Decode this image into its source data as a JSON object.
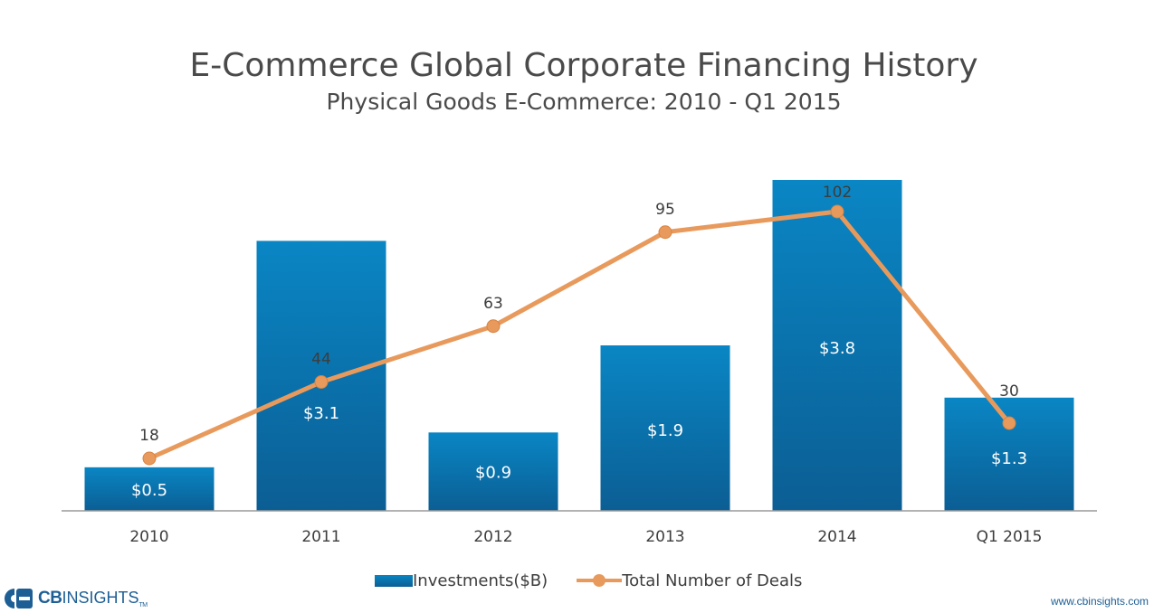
{
  "chart_data": {
    "type": "bar",
    "title": "E-Commerce Global Corporate Financing History",
    "subtitle": "Physical Goods E-Commerce: 2010 - Q1 2015",
    "categories": [
      "2010",
      "2011",
      "2012",
      "2013",
      "2014",
      "Q1 2015"
    ],
    "series": [
      {
        "name": "Investments($B)",
        "type": "bar",
        "values": [
          0.5,
          3.1,
          0.9,
          1.9,
          3.8,
          1.3
        ],
        "labels": [
          "$0.5",
          "$3.1",
          "$0.9",
          "$1.9",
          "$3.8",
          "$1.3"
        ],
        "color": "#0b76b5"
      },
      {
        "name": "Total Number of Deals",
        "type": "line",
        "values": [
          18,
          44,
          63,
          95,
          102,
          30
        ],
        "labels": [
          "18",
          "44",
          "63",
          "95",
          "102",
          "30"
        ],
        "color": "#e89a5c"
      }
    ],
    "grid": false,
    "legend": "bottom"
  },
  "logo": {
    "brand_bold": "CB",
    "brand_thin": "INSIGHTS",
    "tm": "TM"
  },
  "footer": {
    "url": "www.cbinsights.com"
  }
}
